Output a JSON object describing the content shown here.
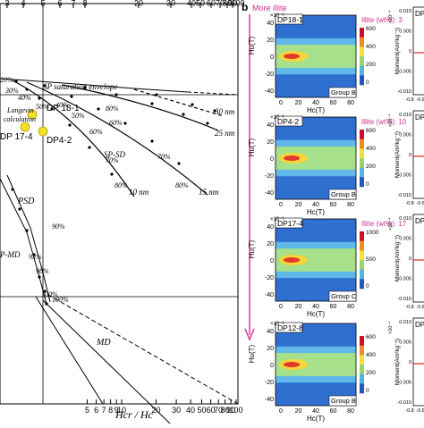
{
  "panel_b_label": "b",
  "left_chart": {
    "top_ticks": [
      "3",
      "4",
      "5",
      "6",
      "7",
      "8",
      "20",
      "30",
      "40",
      "50",
      "60",
      "70",
      "80",
      "90",
      "100"
    ],
    "bottom_ticks": [
      "5",
      "6",
      "7",
      "8",
      "9",
      "10",
      "20",
      "30",
      "40",
      "50",
      "60",
      "70",
      "80",
      "90",
      "100"
    ],
    "xlabel": "Hcr / Hc",
    "labels": {
      "sp_envelope": "SP saturation envelope",
      "langevin1": "Langevin",
      "langevin2": "calculation",
      "sp_sd": "SP-SD",
      "psd": "PSD",
      "md": "MD",
      "pmd": "P-MD"
    },
    "samples": [
      "DP 18-1",
      "DP 17-4",
      "DP4-2"
    ],
    "sample_color": "#f2e02a",
    "size_labels": [
      "30 nm",
      "25 nm",
      "10 nm",
      "15 nm"
    ],
    "pct_labels": {
      "env_a": [
        "20%",
        "30%",
        "40%",
        "50%"
      ],
      "curve_a": [
        "40%",
        "50%",
        "60%",
        "70%",
        "80%"
      ],
      "curve_b": [
        "80%",
        "70%",
        "60%"
      ],
      "curve_c": [
        "80%"
      ],
      "mix": [
        "90%",
        "95%",
        "98%",
        "100%",
        "100%"
      ]
    }
  },
  "forc_panels": [
    {
      "id": "DP18-1",
      "illite": "Illite (wt%): 3",
      "group": "Group B",
      "cmax": [
        "600",
        "400",
        "200",
        "0"
      ]
    },
    {
      "id": "DP4-2",
      "illite": "Illite (wt%): 10",
      "group": "Group B",
      "cmax": [
        "600",
        "400",
        "200",
        "0"
      ]
    },
    {
      "id": "DP17-4",
      "illite": "Illite (wt%): 17",
      "group": "Group C",
      "cmax": [
        "1000",
        "500",
        "0"
      ]
    },
    {
      "id": "DP12-8",
      "illite": "",
      "group": "Group B",
      "cmax": [
        "600",
        "400",
        "200",
        "0"
      ]
    }
  ],
  "forc_axes": {
    "ylabel": "Hu(T)",
    "xlabel": "Hc(T)",
    "exp": "×10⁻³",
    "cexp": "×10⁻³",
    "yticks": [
      "40",
      "20",
      "0",
      "-20",
      "-40"
    ],
    "xticks": [
      "0",
      "20",
      "40",
      "60",
      "80"
    ]
  },
  "more_illite": "More illite",
  "illite_color": "#d4308c",
  "hyst_panels": [
    {
      "ylabel": "Moment(Am²kg⁻¹)",
      "yticks": [
        "0.010",
        "0.005",
        "0",
        "-0.005",
        "-0.010"
      ],
      "xticks": [
        "-0.8",
        "-0.6"
      ],
      "label": "DP"
    },
    {
      "ylabel": "Moment(Am²kg⁻¹)",
      "yticks": [
        "0.010",
        "0.005",
        "0",
        "-0.005",
        "-0.010"
      ],
      "xticks": [
        "-0.8",
        "-0.6"
      ],
      "label": "DP"
    },
    {
      "ylabel": "Moment(Am²kg⁻¹)",
      "yticks": [
        "0.010",
        "0.005",
        "0",
        "-0.005",
        "-0.010"
      ],
      "xticks": [
        "-0.8",
        "-0.6"
      ],
      "label": "DP"
    },
    {
      "ylabel": "Moment(Am²kg⁻¹)",
      "yticks": [
        "0.010",
        "0.005",
        "0",
        "-0.005",
        "-0.010"
      ],
      "xticks": [
        "-0.8",
        "-0.6"
      ],
      "label": "DP"
    }
  ],
  "hyst_exp": "×10⁻⁴",
  "chart_data": {
    "type": "scatter",
    "title": "",
    "xlabel": "Hcr / Hc",
    "ylabel": "",
    "xscale": "log",
    "points": [
      {
        "name": "DP 18-1",
        "x": 1.9
      },
      {
        "name": "DP 17-4",
        "x": 1.75
      },
      {
        "name": "DP4-2",
        "x": 2.15
      }
    ]
  }
}
